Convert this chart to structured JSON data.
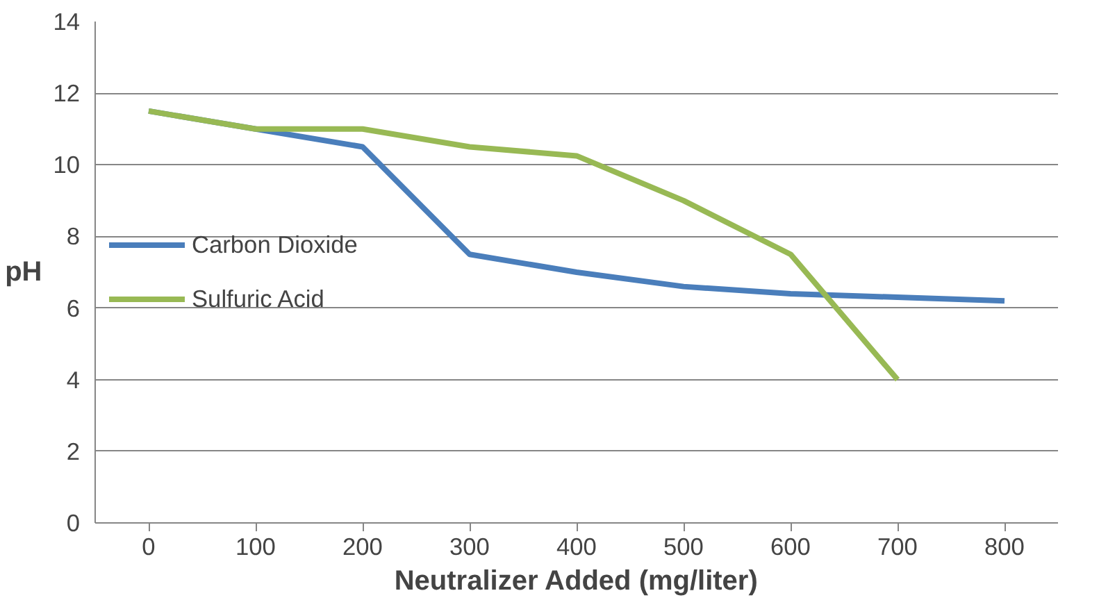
{
  "chart_data": {
    "type": "line",
    "xlabel": "Neutralizer Added (mg/liter)",
    "ylabel": "pH",
    "x": [
      0,
      100,
      200,
      300,
      400,
      500,
      600,
      700,
      800
    ],
    "xlim": [
      -50,
      850
    ],
    "xticks": [
      0,
      100,
      200,
      300,
      400,
      500,
      600,
      700,
      800
    ],
    "ylim": [
      0,
      14
    ],
    "yticks": [
      0,
      2,
      4,
      6,
      8,
      10,
      12,
      14
    ],
    "series": [
      {
        "name": "Carbon Dioxide",
        "color": "#4a7ebb",
        "values": [
          11.5,
          11,
          10.5,
          7.5,
          7.0,
          6.6,
          6.4,
          6.3,
          6.2
        ]
      },
      {
        "name": "Sulfuric Acid",
        "color": "#98b954",
        "values": [
          11.5,
          11,
          11,
          10.5,
          10.25,
          9,
          7.5,
          4,
          null
        ]
      }
    ],
    "grid": "y",
    "legend": "left",
    "marker": "none",
    "line_style": "solid"
  }
}
